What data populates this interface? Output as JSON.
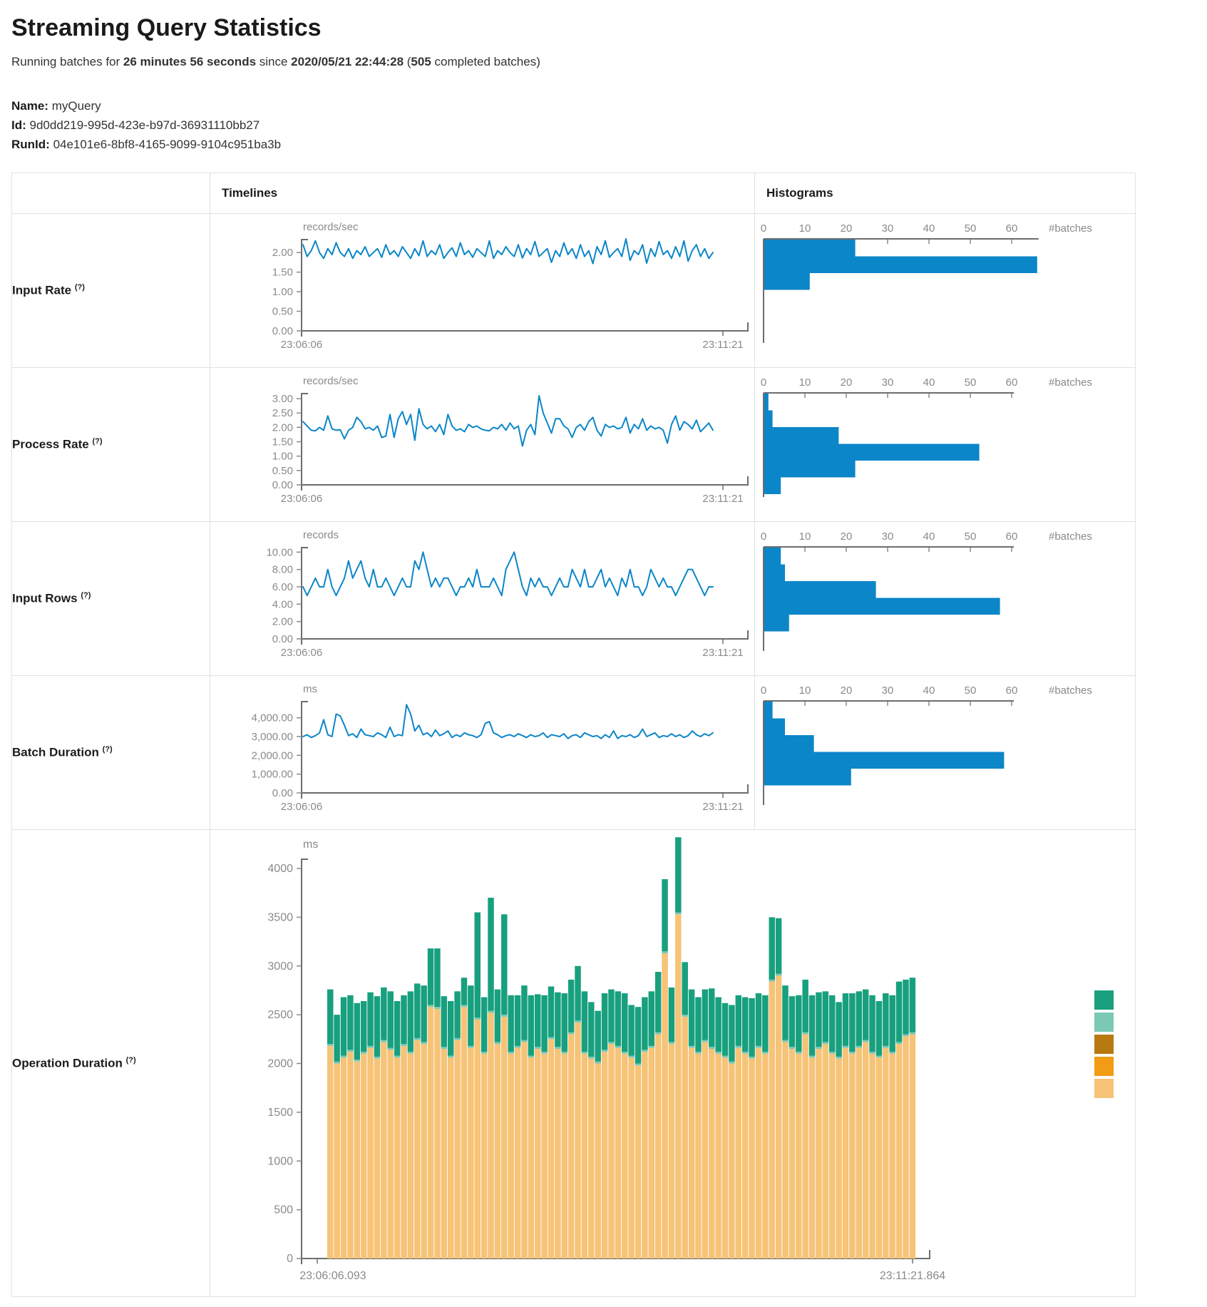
{
  "page": {
    "title": "Streaming Query Statistics",
    "running_prefix": "Running batches for ",
    "running_duration": "26 minutes 56 seconds",
    "since_word": " since ",
    "start_timestamp": "2020/05/21 22:44:28",
    "paren_open": " (",
    "completed_batches": "505",
    "completed_suffix": " completed batches)",
    "name_label": "Name:",
    "name_value": "myQuery",
    "id_label": "Id:",
    "id_value": "9d0dd219-995d-423e-b97d-36931110bb27",
    "runid_label": "RunId:",
    "runid_value": "04e101e6-8bf8-4165-9099-9104c951ba3b"
  },
  "table": {
    "columns": [
      "",
      "Timelines",
      "Histograms"
    ],
    "rows": [
      {
        "label": "Input Rate",
        "help": "(?)"
      },
      {
        "label": "Process Rate",
        "help": "(?)"
      },
      {
        "label": "Input Rows",
        "help": "(?)"
      },
      {
        "label": "Batch Duration",
        "help": "(?)"
      },
      {
        "label": "Operation Duration",
        "help": "(?)"
      }
    ]
  },
  "colors": {
    "blue": "#0b86c8",
    "axis": "#6d6d6d",
    "tick_text": "#8a8a8a",
    "teal": "#18a07e",
    "light_teal": "#7bc8b5",
    "dark_ochre": "#b87a10",
    "orange": "#f19c12",
    "light_orange": "#f6c377",
    "border": "#e1e1e1"
  },
  "chart_data": [
    {
      "metric": "Input Rate",
      "timeline": {
        "type": "line",
        "unit": "records/sec",
        "axis_max": 2.35,
        "yticks": [
          {
            "v": 0,
            "l": "0.00"
          },
          {
            "v": 0.5,
            "l": "0.50"
          },
          {
            "v": 1,
            "l": "1.00"
          },
          {
            "v": 1.5,
            "l": "1.50"
          },
          {
            "v": 2,
            "l": "2.00"
          }
        ],
        "x_start": "23:06:06",
        "x_end": "23:11:21",
        "values": [
          2.2,
          1.9,
          2.05,
          2.3,
          2.0,
          1.85,
          2.1,
          1.95,
          2.25,
          2.0,
          1.9,
          2.1,
          1.85,
          2.05,
          1.95,
          2.15,
          1.9,
          2.0,
          2.1,
          1.88,
          2.2,
          1.95,
          2.05,
          1.9,
          2.15,
          2.0,
          1.85,
          2.1,
          1.92,
          2.3,
          1.9,
          2.05,
          1.95,
          2.2,
          1.85,
          2.0,
          2.12,
          1.9,
          2.25,
          1.95,
          2.05,
          1.88,
          2.1,
          2.0,
          1.9,
          2.3,
          1.85,
          2.05,
          1.95,
          2.15,
          2.0,
          1.9,
          2.2,
          1.86,
          2.1,
          1.95,
          2.28,
          1.9,
          2.0,
          2.1,
          1.75,
          2.05,
          1.9,
          2.25,
          1.95,
          2.1,
          1.85,
          2.2,
          1.9,
          2.05,
          1.72,
          2.15,
          1.95,
          2.3,
          1.88,
          2.0,
          2.1,
          1.9,
          2.35,
          1.8,
          2.05,
          1.95,
          2.2,
          1.73,
          2.1,
          1.9,
          2.28,
          1.95,
          2.05,
          1.85,
          2.15,
          1.9,
          2.3,
          1.78,
          2.05,
          2.2,
          1.9,
          2.1,
          1.85,
          2.0
        ]
      },
      "histogram": {
        "type": "bar-horizontal",
        "axis_label": "#batches",
        "xticks": [
          0,
          10,
          20,
          30,
          40,
          50,
          60
        ],
        "values": [
          22,
          66,
          11
        ]
      }
    },
    {
      "metric": "Process Rate",
      "timeline": {
        "type": "line",
        "unit": "records/sec",
        "axis_max": 3.2,
        "yticks": [
          {
            "v": 0,
            "l": "0.00"
          },
          {
            "v": 0.5,
            "l": "0.50"
          },
          {
            "v": 1,
            "l": "1.00"
          },
          {
            "v": 1.5,
            "l": "1.50"
          },
          {
            "v": 2,
            "l": "2.00"
          },
          {
            "v": 2.5,
            "l": "2.50"
          },
          {
            "v": 3,
            "l": "3.00"
          }
        ],
        "x_start": "23:06:06",
        "x_end": "23:11:21",
        "values": [
          2.2,
          2.05,
          1.9,
          1.88,
          2.0,
          1.9,
          2.4,
          1.95,
          1.9,
          1.92,
          1.6,
          1.9,
          2.0,
          2.35,
          2.2,
          1.95,
          2.0,
          1.9,
          2.05,
          1.65,
          1.7,
          2.45,
          1.65,
          2.3,
          2.55,
          2.1,
          2.45,
          1.55,
          2.65,
          2.1,
          1.95,
          2.05,
          1.85,
          2.1,
          1.75,
          2.45,
          2.05,
          1.9,
          1.95,
          1.85,
          2.1,
          2.0,
          2.05,
          1.95,
          1.9,
          1.88,
          2.0,
          1.95,
          2.1,
          1.9,
          2.15,
          1.95,
          2.05,
          1.35,
          1.9,
          2.1,
          1.75,
          3.1,
          2.5,
          2.15,
          1.8,
          2.3,
          2.3,
          2.05,
          1.95,
          1.65,
          2.0,
          2.1,
          1.9,
          2.2,
          2.35,
          1.9,
          1.7,
          2.1,
          2.0,
          2.05,
          1.95,
          2.0,
          2.35,
          1.8,
          2.1,
          1.95,
          2.3,
          1.9,
          2.05,
          1.95,
          2.0,
          1.9,
          1.45,
          2.1,
          2.4,
          1.9,
          2.2,
          2.1,
          1.95,
          2.25,
          1.85,
          2.0,
          2.15,
          1.9
        ]
      },
      "histogram": {
        "type": "bar-horizontal",
        "axis_label": "#batches",
        "xticks": [
          0,
          10,
          20,
          30,
          40,
          50,
          60
        ],
        "values": [
          1,
          2,
          18,
          52,
          22,
          4
        ]
      }
    },
    {
      "metric": "Input Rows",
      "timeline": {
        "type": "line",
        "unit": "records",
        "axis_max": 10.6,
        "yticks": [
          {
            "v": 0,
            "l": "0.00"
          },
          {
            "v": 2,
            "l": "2.00"
          },
          {
            "v": 4,
            "l": "4.00"
          },
          {
            "v": 6,
            "l": "6.00"
          },
          {
            "v": 8,
            "l": "8.00"
          },
          {
            "v": 10,
            "l": "10.00"
          }
        ],
        "x_start": "23:06:06",
        "x_end": "23:11:21",
        "values": [
          6,
          5,
          6,
          7,
          6,
          6,
          8,
          6,
          5,
          6,
          7,
          9,
          7,
          8,
          9,
          7,
          6,
          8,
          6,
          6,
          7,
          6,
          5,
          6,
          7,
          6,
          6,
          9,
          8,
          10,
          8,
          6,
          7,
          6,
          7,
          7,
          6,
          5,
          6,
          6,
          7,
          6,
          8,
          6,
          6,
          6,
          7,
          6,
          5,
          8,
          9,
          10,
          8,
          6,
          5,
          7,
          6,
          7,
          6,
          6,
          5,
          6,
          7,
          6,
          6,
          8,
          7,
          6,
          8,
          6,
          6,
          7,
          8,
          6,
          7,
          6,
          5,
          7,
          6,
          8,
          6,
          6,
          5,
          6,
          8,
          7,
          6,
          7,
          6,
          6,
          5,
          6,
          7,
          8,
          8,
          7,
          6,
          5,
          6,
          6
        ]
      },
      "histogram": {
        "type": "bar-horizontal",
        "axis_label": "#batches",
        "xticks": [
          0,
          10,
          20,
          30,
          40,
          50,
          60
        ],
        "values": [
          4,
          5,
          27,
          57,
          6
        ]
      }
    },
    {
      "metric": "Batch Duration",
      "timeline": {
        "type": "line",
        "unit": "ms",
        "axis_max": 4900,
        "yticks": [
          {
            "v": 0,
            "l": "0.00"
          },
          {
            "v": 1000,
            "l": "1,000.00"
          },
          {
            "v": 2000,
            "l": "2,000.00"
          },
          {
            "v": 3000,
            "l": "3,000.00"
          },
          {
            "v": 4000,
            "l": "4,000.00"
          }
        ],
        "x_start": "23:06:06",
        "x_end": "23:11:21",
        "values": [
          3000,
          3100,
          2950,
          3050,
          3200,
          3900,
          3100,
          3000,
          4200,
          4100,
          3600,
          3050,
          3150,
          2950,
          3400,
          3100,
          3050,
          3000,
          3200,
          3100,
          2950,
          3500,
          3000,
          3100,
          3050,
          4700,
          4200,
          3300,
          3600,
          3100,
          3200,
          3000,
          3350,
          3050,
          3150,
          3300,
          2950,
          3100,
          3000,
          3200,
          3100,
          3050,
          2950,
          3100,
          3700,
          3800,
          3200,
          3100,
          2950,
          3050,
          3100,
          3000,
          3150,
          3050,
          2950,
          3100,
          3000,
          3050,
          3200,
          2950,
          3100,
          3050,
          3000,
          3150,
          2900,
          3050,
          3100,
          2950,
          3200,
          3100,
          3000,
          3050,
          2900,
          3100,
          2950,
          3300,
          2900,
          3050,
          3000,
          3100,
          2950,
          3050,
          3400,
          3000,
          3100,
          3200,
          2950,
          3050,
          3000,
          3150,
          3000,
          3100,
          2950,
          3050,
          3300,
          3100,
          3000,
          3150,
          3050,
          3200
        ]
      },
      "histogram": {
        "type": "bar-horizontal",
        "axis_label": "#batches",
        "xticks": [
          0,
          10,
          20,
          30,
          40,
          50,
          60
        ],
        "values": [
          2,
          5,
          12,
          58,
          21
        ]
      }
    },
    {
      "metric": "Operation Duration",
      "timeline": {
        "type": "stacked-bar",
        "unit": "ms",
        "yticks": [
          {
            "v": 0,
            "l": "0"
          },
          {
            "v": 500,
            "l": "500"
          },
          {
            "v": 1000,
            "l": "1000"
          },
          {
            "v": 1500,
            "l": "1500"
          },
          {
            "v": 2000,
            "l": "2000"
          },
          {
            "v": 2500,
            "l": "2500"
          },
          {
            "v": 3000,
            "l": "3000"
          },
          {
            "v": 3500,
            "l": "3500"
          },
          {
            "v": 4000,
            "l": "4000"
          }
        ],
        "x_start": "23:06:06.093",
        "x_end": "23:11:21.864",
        "series": [
          {
            "name": "base-segment",
            "color_key": "light_orange",
            "values": [
              2180,
              2000,
              2060,
              2120,
              2020,
              2100,
              2160,
              2050,
              2220,
              2140,
              2060,
              2180,
              2100,
              2240,
              2200,
              2580,
              2560,
              2150,
              2060,
              2240,
              2580,
              2160,
              2450,
              2100,
              2520,
              2200,
              2480,
              2100,
              2160,
              2220,
              2060,
              2150,
              2100,
              2250,
              2150,
              2100,
              2300,
              2420,
              2100,
              2050,
              2000,
              2120,
              2200,
              2160,
              2100,
              2060,
              1980,
              2120,
              2160,
              2300,
              3130,
              2200,
              3530,
              2480,
              2160,
              2100,
              2220,
              2150,
              2100,
              2060,
              2000,
              2160,
              2100,
              2050,
              2160,
              2100,
              2840,
              2900,
              2220,
              2150,
              2100,
              2300,
              2060,
              2150,
              2200,
              2100,
              2050,
              2160,
              2100,
              2160,
              2220,
              2100,
              2060,
              2160,
              2100,
              2200,
              2280,
              2300
            ]
          },
          {
            "name": "middle-sliver",
            "color_key": "light_teal",
            "constant": 20
          },
          {
            "name": "top-segment",
            "color_key": "teal",
            "values": [
              560,
              480,
              600,
              560,
              580,
              520,
              550,
              620,
              540,
              580,
              560,
              500,
              620,
              560,
              580,
              580,
              600,
              520,
              560,
              480,
              280,
              620,
              1080,
              560,
              1160,
              540,
              1030,
              580,
              520,
              560,
              620,
              540,
              580,
              520,
              560,
              600,
              540,
              560,
              620,
              560,
              520,
              580,
              540,
              560,
              600,
              520,
              580,
              540,
              560,
              620,
              740,
              560,
              770,
              540,
              580,
              560,
              520,
              600,
              560,
              540,
              580,
              520,
              560,
              600,
              540,
              580,
              640,
              570,
              560,
              520,
              580,
              540,
              620,
              560,
              520,
              580,
              560,
              540,
              600,
              560,
              520,
              580,
              560,
              540,
              580,
              620,
              560,
              560
            ]
          }
        ],
        "legend_swatches": [
          {
            "name": "swatch-teal",
            "color_key": "teal"
          },
          {
            "name": "swatch-light-teal",
            "color_key": "light_teal"
          },
          {
            "name": "swatch-dark-ochre",
            "color_key": "dark_ochre"
          },
          {
            "name": "swatch-orange",
            "color_key": "orange"
          },
          {
            "name": "swatch-light-orange",
            "color_key": "light_orange"
          }
        ]
      }
    }
  ]
}
